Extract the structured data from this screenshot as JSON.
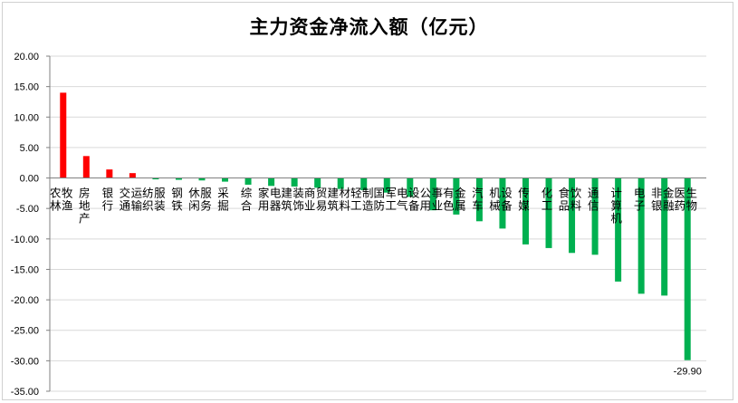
{
  "chart_data": {
    "type": "bar",
    "title": "主力资金净流入额（亿元）",
    "xlabel": "",
    "ylabel": "",
    "ylim": [
      -35,
      20
    ],
    "yticks": [
      "20.00",
      "15.00",
      "10.00",
      "5.00",
      "0.00",
      "-5.00",
      "-10.00",
      "-15.00",
      "-20.00",
      "-25.00",
      "-30.00",
      "-35.00"
    ],
    "grid": true,
    "legend": "none",
    "colors": {
      "positive": "#ff0000",
      "negative": "#00b050",
      "grid": "#d9d9d9",
      "axis": "#808080"
    },
    "categories": [
      "农林牧渔",
      "房地产",
      "银行",
      "交通运输",
      "纺织服装",
      "钢铁",
      "休闲服务",
      "采掘",
      "综合",
      "家用电器",
      "建筑装饰",
      "商业贸易",
      "建筑材料",
      "轻工制造",
      "国防军工",
      "电气设备",
      "公用事业",
      "有色金属",
      "汽车",
      "机械设备",
      "传媒",
      "化工",
      "食品饮料",
      "通信",
      "计算机",
      "电子",
      "非银金融",
      "医药生物"
    ],
    "values": [
      14.0,
      3.6,
      1.4,
      0.8,
      -0.1,
      -0.3,
      -0.4,
      -0.6,
      -1.1,
      -1.3,
      -1.4,
      -1.6,
      -1.8,
      -2.0,
      -2.4,
      -3.1,
      -5.3,
      -6.0,
      -7.1,
      -8.3,
      -10.9,
      -11.5,
      -12.3,
      -12.6,
      -17.0,
      -19.0,
      -19.3,
      -29.9
    ],
    "annotations": [
      {
        "category": "医药生物",
        "text": "-29.90"
      }
    ]
  }
}
